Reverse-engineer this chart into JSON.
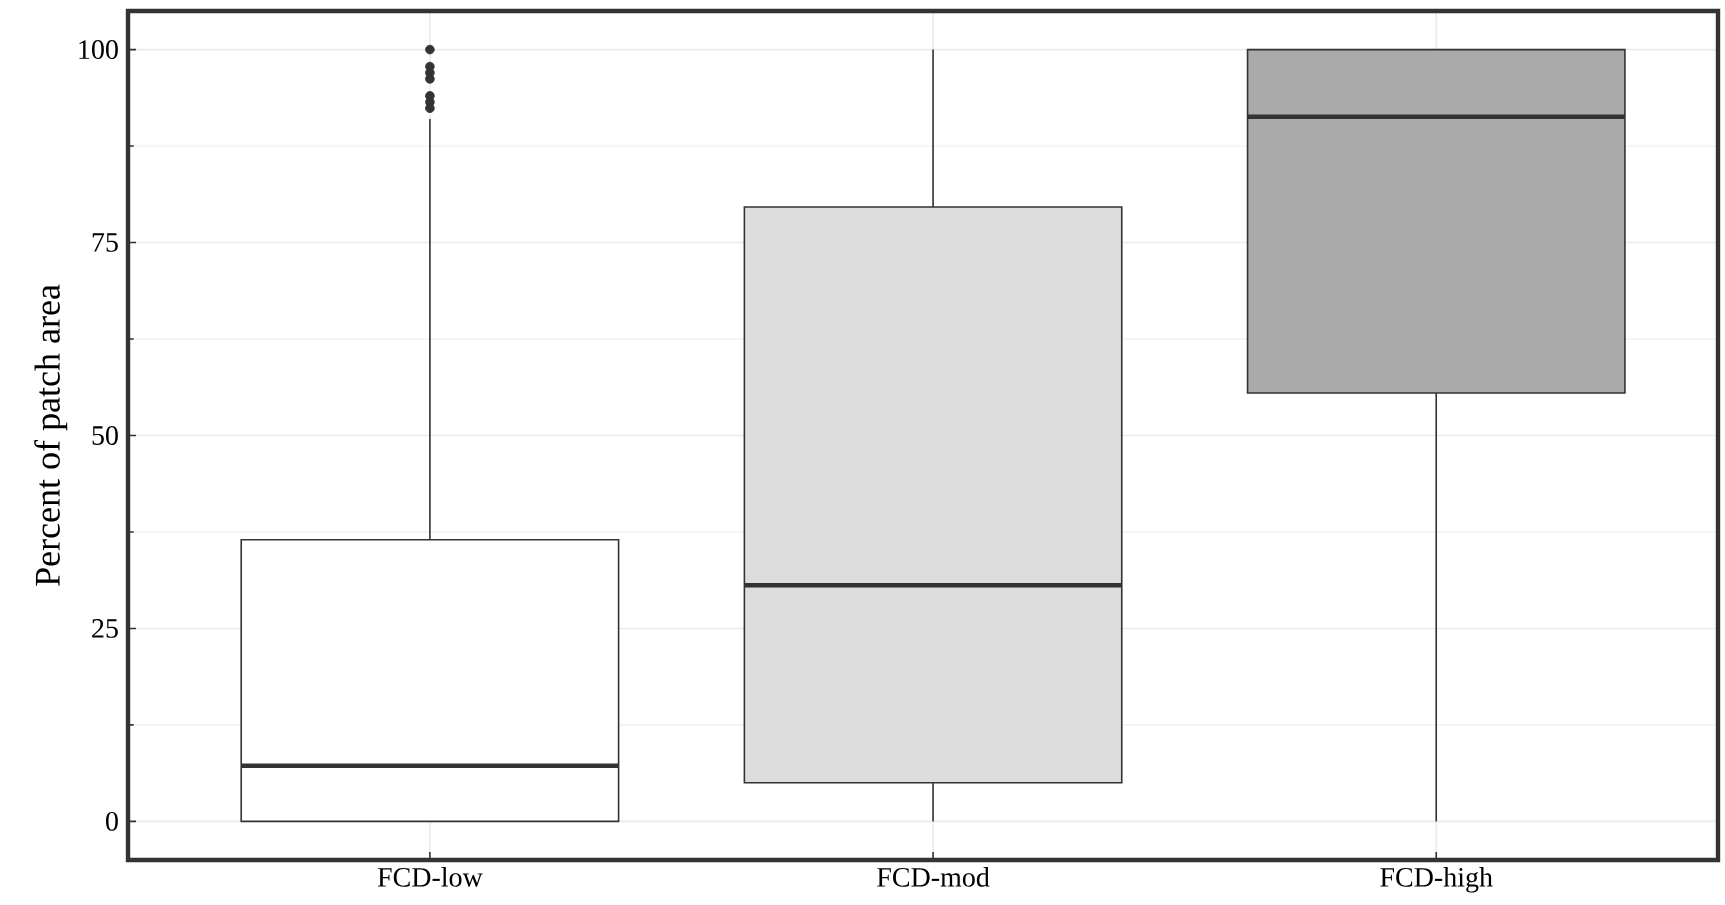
{
  "chart_data": {
    "type": "box",
    "ylabel": "Percent of patch area",
    "categories": [
      "FCD-low",
      "FCD-mod",
      "FCD-high"
    ],
    "boxes": [
      {
        "low": 0,
        "q1": 0,
        "median": 7.2,
        "q3": 36.5,
        "high": 91,
        "outliers": [
          100,
          97.8,
          97,
          96.2,
          94,
          93.2,
          92.4
        ]
      },
      {
        "low": 0,
        "q1": 5,
        "median": 30.6,
        "q3": 79.6,
        "high": 100
      },
      {
        "low": 0,
        "q1": 55.5,
        "median": 91.3,
        "q3": 100,
        "high": 100
      }
    ],
    "colors": [
      "#ffffff",
      "#dddddd",
      "#aaaaaa"
    ],
    "ylim": [
      -5,
      105
    ],
    "yticks": [
      0,
      25,
      50,
      75,
      100
    ],
    "grid": true
  }
}
